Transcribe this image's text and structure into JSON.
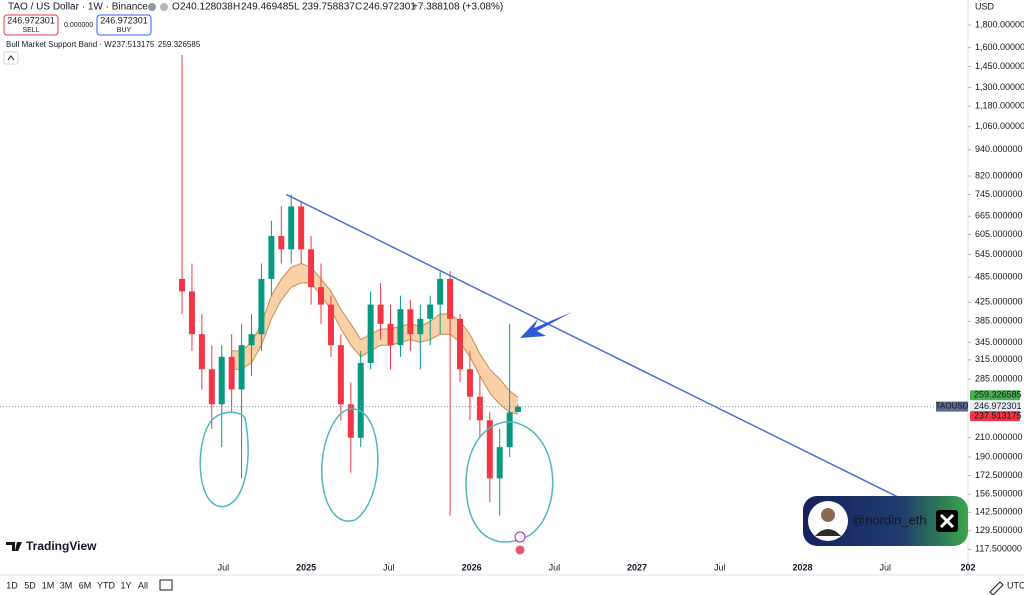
{
  "header": {
    "symbol": "TAO / US Dollar · 1W · Binance",
    "ohlc_letters": [
      "O",
      "H",
      "L",
      "C"
    ],
    "change": "+7.388108 (+3.08%)",
    "sell": "SELL",
    "buy": "BUY",
    "spread": "0.000000",
    "indicator": "Bull Market Support Band · W"
  },
  "chart_data": {
    "type": "candlestick",
    "log_scale": true,
    "y_unit": "USD",
    "symbol_tag": "TAOUSD",
    "up_color": "#089981",
    "down_color": "#f23645",
    "band_color": "#f5c28c",
    "band_line_color": "#d08a4b",
    "x": [
      2024.25,
      2024.31,
      2024.37,
      2024.43,
      2024.49,
      2024.55,
      2024.61,
      2024.67,
      2024.73,
      2024.79,
      2024.85,
      2024.91,
      2024.97,
      2025.03,
      2025.09,
      2025.15,
      2025.21,
      2025.27,
      2025.33,
      2025.39,
      2025.45,
      2025.51,
      2025.57,
      2025.63,
      2025.69,
      2025.75,
      2025.81,
      2025.87,
      2025.93,
      2025.99,
      2026.05,
      2026.11,
      2026.17,
      2026.23,
      2026.28
    ],
    "open": [
      480,
      450,
      360,
      300,
      250,
      320,
      270,
      340,
      360,
      480,
      600,
      560,
      700,
      560,
      460,
      420,
      340,
      250,
      210,
      310,
      420,
      380,
      340,
      410,
      360,
      390,
      420,
      480,
      390,
      300,
      260,
      230,
      170,
      200,
      240.128038
    ],
    "high": [
      1540,
      520,
      400,
      340,
      340,
      360,
      380,
      400,
      520,
      650,
      700,
      745,
      720,
      600,
      520,
      440,
      360,
      280,
      330,
      450,
      470,
      420,
      440,
      430,
      420,
      440,
      500,
      500,
      400,
      330,
      290,
      240,
      220,
      380,
      249.469485
    ],
    "low": [
      400,
      330,
      270,
      220,
      200,
      240,
      170,
      290,
      330,
      440,
      520,
      520,
      520,
      420,
      380,
      320,
      230,
      175,
      200,
      300,
      350,
      300,
      320,
      330,
      300,
      340,
      360,
      140,
      280,
      230,
      210,
      150,
      140,
      190,
      239.758837
    ],
    "close": [
      450,
      360,
      300,
      250,
      320,
      270,
      340,
      360,
      480,
      600,
      560,
      700,
      560,
      460,
      420,
      340,
      250,
      210,
      310,
      420,
      380,
      340,
      410,
      360,
      390,
      420,
      480,
      390,
      300,
      260,
      230,
      170,
      200,
      239.584193,
      246.972301
    ],
    "band_lower": [
      null,
      null,
      null,
      null,
      null,
      300,
      300,
      310,
      340,
      390,
      430,
      460,
      470,
      470,
      440,
      410,
      370,
      340,
      320,
      330,
      340,
      340,
      345,
      350,
      345,
      350,
      360,
      360,
      345,
      320,
      290,
      265,
      250,
      240,
      237.513175
    ],
    "band_upper": [
      null,
      null,
      null,
      null,
      null,
      330,
      330,
      345,
      380,
      440,
      480,
      510,
      520,
      510,
      480,
      450,
      410,
      380,
      350,
      360,
      370,
      370,
      375,
      380,
      375,
      385,
      400,
      400,
      385,
      360,
      325,
      300,
      285,
      268,
      259.326585
    ],
    "trendline": {
      "x": [
        2024.88,
        2028.58
      ],
      "values": [
        745,
        154
      ],
      "color": "#4a6fd6"
    },
    "xlim": [
      2023.15,
      2029.0
    ],
    "xticks": [
      {
        "value": 2024.5,
        "label": "Jul"
      },
      2025,
      {
        "value": 2025.5,
        "label": "Jul"
      },
      2026,
      {
        "value": 2026.5,
        "label": "Jul"
      },
      2027,
      {
        "value": 2027.5,
        "label": "Jul"
      },
      2028,
      {
        "value": 2028.5,
        "label": "Jul"
      },
      {
        "value": 2029,
        "label": "202"
      }
    ],
    "ylim": [
      110,
      2050
    ],
    "yticks": [
      {
        "value": 1800,
        "label": "1,800.000000"
      },
      {
        "value": 1600,
        "label": "1,600.000000"
      },
      {
        "value": 1450,
        "label": "1,450.000000"
      },
      {
        "value": 1300,
        "label": "1,300.000000"
      },
      {
        "value": 1180,
        "label": "1,180.000000"
      },
      {
        "value": 1060,
        "label": "1,060.000000"
      },
      {
        "value": 940,
        "label": "940.000000"
      },
      {
        "value": 820,
        "label": "820.000000"
      },
      {
        "value": 745,
        "label": "745.000000"
      },
      {
        "value": 665,
        "label": "665.000000"
      },
      {
        "value": 605,
        "label": "605.000000"
      },
      {
        "value": 545,
        "label": "545.000000"
      },
      {
        "value": 485,
        "label": "485.000000"
      },
      {
        "value": 425,
        "label": "425.000000"
      },
      {
        "value": 385,
        "label": "385.000000"
      },
      {
        "value": 345,
        "label": "345.000000"
      },
      {
        "value": 315,
        "label": "315.000000"
      },
      {
        "value": 285,
        "label": "285.000000"
      },
      {
        "value": 210,
        "label": "210.000000"
      },
      {
        "value": 190,
        "label": "190.000000"
      },
      {
        "value": 172.5,
        "label": "172.500000"
      },
      {
        "value": 156.5,
        "label": "156.500000"
      },
      {
        "value": 142.5,
        "label": "142.500000"
      },
      {
        "value": 129.5,
        "label": "129.500000"
      },
      {
        "value": 117.5,
        "label": "117.500000"
      }
    ]
  },
  "watermark": "TradingView",
  "badge": "@nordin_eth",
  "toolbar": {
    "ranges": [
      "1D",
      "5D",
      "1M",
      "3M",
      "6M",
      "YTD",
      "1Y",
      "All"
    ],
    "timezone": "UTC"
  }
}
